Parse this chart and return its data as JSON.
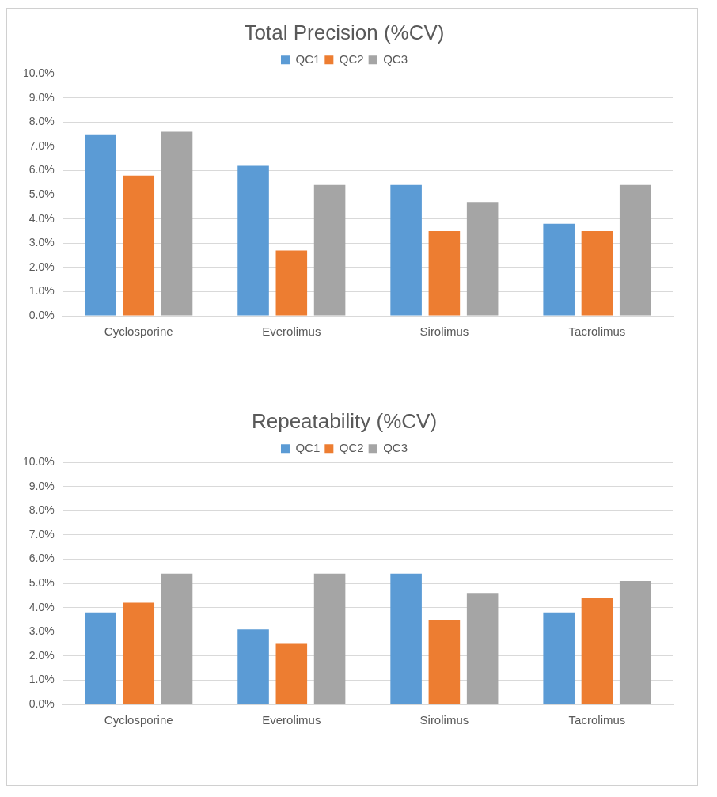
{
  "chart_data": [
    {
      "type": "bar",
      "title": "Total Precision (%CV)",
      "categories": [
        "Cyclosporine",
        "Everolimus",
        "Sirolimus",
        "Tacrolimus"
      ],
      "series": [
        {
          "name": "QC1",
          "color": "#5b9bd5",
          "values": [
            7.5,
            6.2,
            5.4,
            3.8
          ]
        },
        {
          "name": "QC2",
          "color": "#ed7d31",
          "values": [
            5.8,
            2.7,
            3.5,
            3.5
          ]
        },
        {
          "name": "QC3",
          "color": "#a5a5a5",
          "values": [
            7.6,
            5.4,
            4.7,
            5.4
          ]
        }
      ],
      "ylim": [
        0,
        10
      ],
      "yticks": [
        {
          "value": 0,
          "label": "0.0%"
        },
        {
          "value": 1,
          "label": "1.0%"
        },
        {
          "value": 2,
          "label": "2.0%"
        },
        {
          "value": 3,
          "label": "3.0%"
        },
        {
          "value": 4,
          "label": "4.0%"
        },
        {
          "value": 5,
          "label": "5.0%"
        },
        {
          "value": 6,
          "label": "6.0%"
        },
        {
          "value": 7,
          "label": "7.0%"
        },
        {
          "value": 8,
          "label": "8.0%"
        },
        {
          "value": 9,
          "label": "9.0%"
        },
        {
          "value": 10,
          "label": "10.0%"
        }
      ],
      "grid": "y",
      "legend": "top"
    },
    {
      "type": "bar",
      "title": "Repeatability (%CV)",
      "categories": [
        "Cyclosporine",
        "Everolimus",
        "Sirolimus",
        "Tacrolimus"
      ],
      "series": [
        {
          "name": "QC1",
          "color": "#5b9bd5",
          "values": [
            3.8,
            3.1,
            5.4,
            3.8
          ]
        },
        {
          "name": "QC2",
          "color": "#ed7d31",
          "values": [
            4.2,
            2.5,
            3.5,
            4.4
          ]
        },
        {
          "name": "QC3",
          "color": "#a5a5a5",
          "values": [
            5.4,
            5.4,
            4.6,
            5.1
          ]
        }
      ],
      "ylim": [
        0,
        10
      ],
      "yticks": [
        {
          "value": 0,
          "label": "0.0%"
        },
        {
          "value": 1,
          "label": "1.0%"
        },
        {
          "value": 2,
          "label": "2.0%"
        },
        {
          "value": 3,
          "label": "3.0%"
        },
        {
          "value": 4,
          "label": "4.0%"
        },
        {
          "value": 5,
          "label": "5.0%"
        },
        {
          "value": 6,
          "label": "6.0%"
        },
        {
          "value": 7,
          "label": "7.0%"
        },
        {
          "value": 8,
          "label": "8.0%"
        },
        {
          "value": 9,
          "label": "9.0%"
        },
        {
          "value": 10,
          "label": "10.0%"
        }
      ],
      "grid": "y",
      "legend": "top"
    }
  ]
}
